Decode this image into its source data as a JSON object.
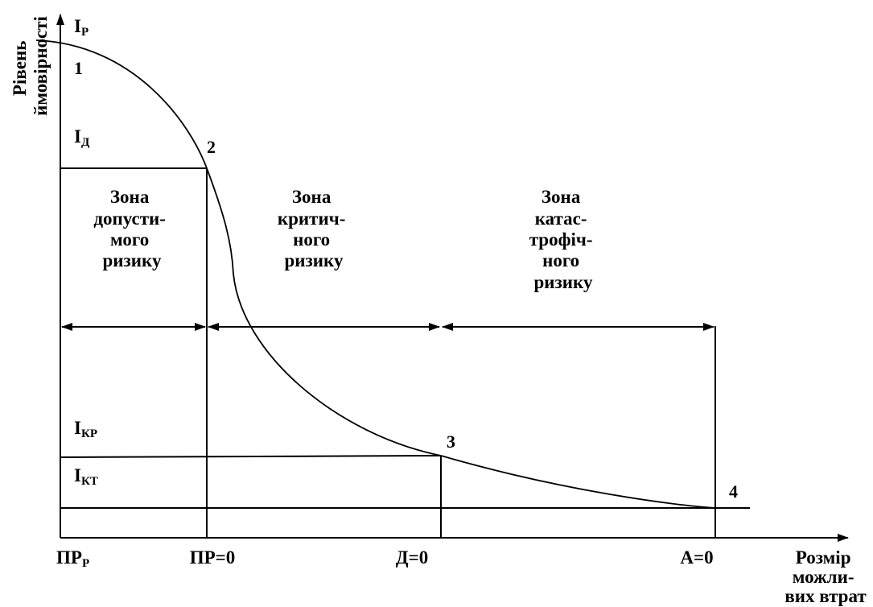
{
  "y_axis": {
    "title_lines": [
      "Рівень",
      "ймовірності"
    ],
    "levels": [
      {
        "id": "ip",
        "main": "I",
        "sub": "Р"
      },
      {
        "id": "id",
        "main": "I",
        "sub": "Д"
      },
      {
        "id": "ikr",
        "main": "I",
        "sub": "КР"
      },
      {
        "id": "ikt",
        "main": "I",
        "sub": "КТ"
      }
    ]
  },
  "x_axis": {
    "title_lines": [
      "Розмір",
      "можли-",
      "вих втрат"
    ],
    "ticks": [
      {
        "id": "prp",
        "main": "ПР",
        "sub": "Р"
      },
      {
        "id": "pr0",
        "main": "ПР=0",
        "sub": ""
      },
      {
        "id": "d0",
        "main": "Д=0",
        "sub": ""
      },
      {
        "id": "a0",
        "main": "А=0",
        "sub": ""
      }
    ]
  },
  "points": [
    "1",
    "2",
    "3",
    "4"
  ],
  "zones": [
    {
      "id": "acceptable",
      "lines": [
        "Зона",
        "допусти-",
        "мого",
        "ризику"
      ]
    },
    {
      "id": "critical",
      "lines": [
        "Зона",
        "критич-",
        "ного",
        "ризику"
      ]
    },
    {
      "id": "catastrophic",
      "lines": [
        "Зона",
        "катас-",
        "трофіч-",
        "ного",
        "ризику"
      ]
    }
  ]
}
